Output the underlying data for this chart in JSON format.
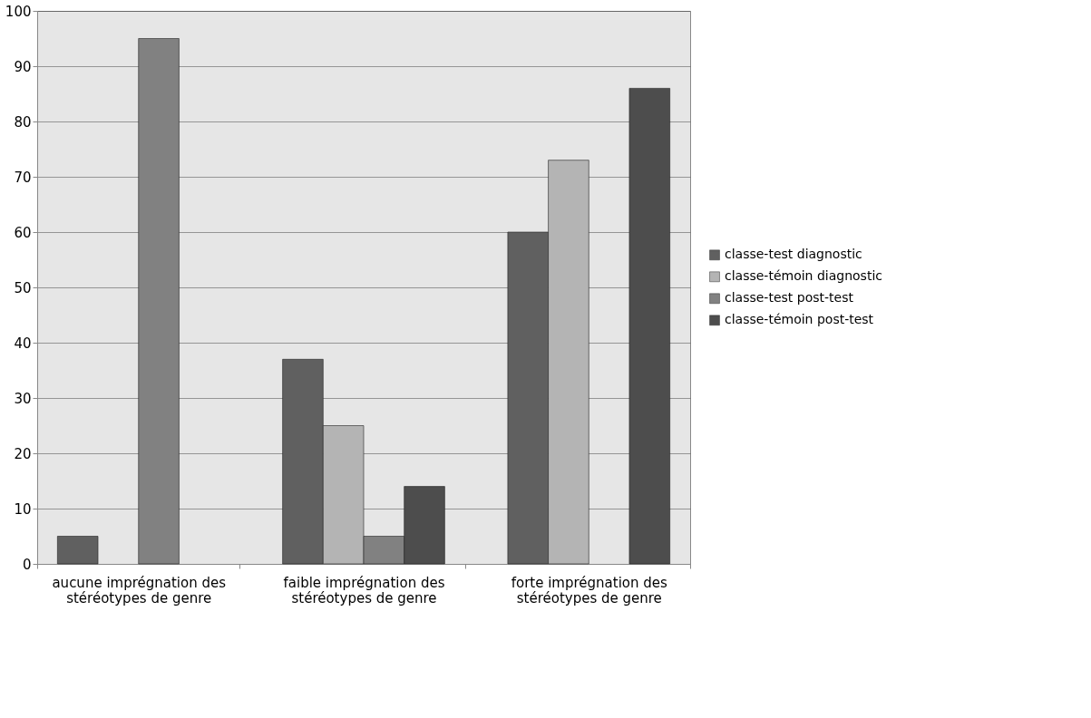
{
  "chart_data": {
    "type": "bar",
    "categories": [
      "aucune imprégnation des stéréotypes de genre",
      "faible imprégnation des stéréotypes de genre",
      "forte imprégnation des stéréotypes de genre"
    ],
    "series": [
      {
        "name": "classe-test diagnostic",
        "color": "#606060",
        "values": [
          5,
          37,
          60
        ]
      },
      {
        "name": "classe-témoin diagnostic",
        "color": "#b4b4b4",
        "values": [
          null,
          25,
          73
        ]
      },
      {
        "name": "classe-test post-test",
        "color": "#818181",
        "values": [
          95,
          5,
          null
        ]
      },
      {
        "name": "classe-témoin post-test",
        "color": "#4d4d4d",
        "values": [
          null,
          14,
          86
        ]
      }
    ],
    "ylim": [
      0,
      100
    ],
    "yticks": [
      0,
      10,
      20,
      30,
      40,
      50,
      60,
      70,
      80,
      90,
      100
    ],
    "grid": "y",
    "legend": "right"
  }
}
